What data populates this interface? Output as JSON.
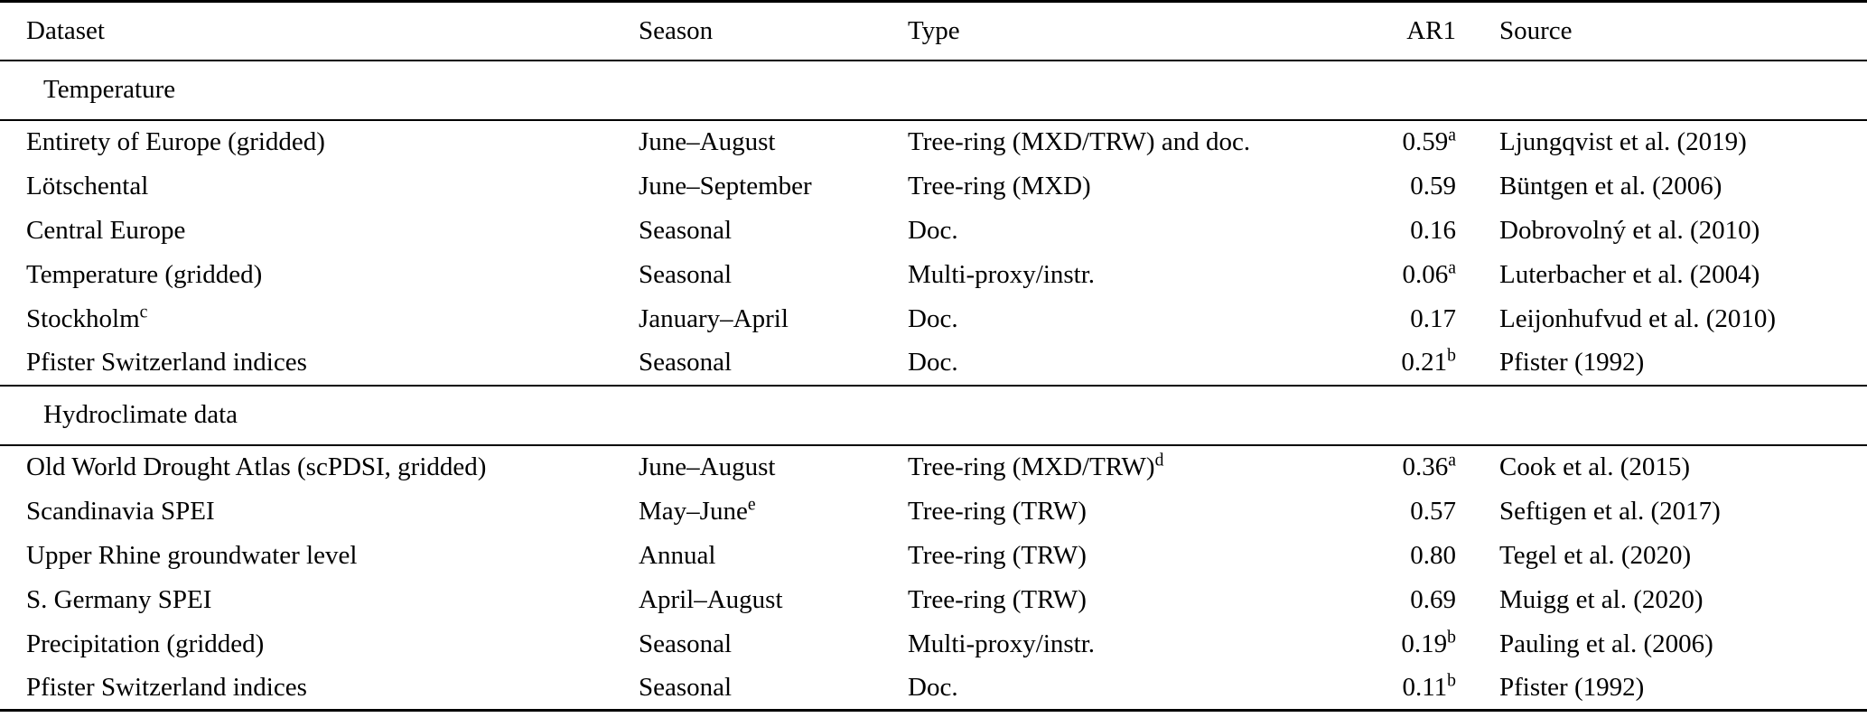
{
  "table": {
    "colors": {
      "text": "#000000",
      "rule": "#000000",
      "background": "#ffffff"
    },
    "columns": [
      "Dataset",
      "Season",
      "Type",
      "AR1",
      "Source"
    ],
    "sections": [
      {
        "header": "Temperature",
        "rows": [
          {
            "dataset": "Entirety of Europe (gridded)",
            "season": "June–August",
            "type": "Tree-ring (MXD/TRW) and doc.",
            "ar1": "0.59",
            "ar1_sup": "a",
            "source": "Ljungqvist et al. (2019)"
          },
          {
            "dataset": "Lötschental",
            "season": "June–September",
            "type": "Tree-ring (MXD)",
            "ar1": "0.59",
            "source": "Büntgen et al. (2006)"
          },
          {
            "dataset": "Central Europe",
            "season": "Seasonal",
            "type": "Doc.",
            "ar1": "0.16",
            "source": "Dobrovolný et al. (2010)"
          },
          {
            "dataset": "Temperature (gridded)",
            "season": "Seasonal",
            "type": "Multi-proxy/instr.",
            "ar1": "0.06",
            "ar1_sup": "a",
            "source": "Luterbacher et al. (2004)"
          },
          {
            "dataset": "Stockholm",
            "dataset_sup": "c",
            "season": "January–April",
            "type": "Doc.",
            "ar1": "0.17",
            "source": "Leijonhufvud et al. (2010)"
          },
          {
            "dataset": "Pfister Switzerland indices",
            "season": "Seasonal",
            "type": "Doc.",
            "ar1": "0.21",
            "ar1_sup": "b",
            "source": "Pfister (1992)"
          }
        ]
      },
      {
        "header": "Hydroclimate data",
        "rows": [
          {
            "dataset": "Old World Drought Atlas (scPDSI, gridded)",
            "season": "June–August",
            "type": "Tree-ring (MXD/TRW)",
            "type_sup": "d",
            "ar1": "0.36",
            "ar1_sup": "a",
            "source": "Cook et al. (2015)"
          },
          {
            "dataset": "Scandinavia SPEI",
            "season": "May–June",
            "season_sup": "e",
            "type": "Tree-ring (TRW)",
            "ar1": "0.57",
            "source": "Seftigen et al. (2017)"
          },
          {
            "dataset": "Upper Rhine groundwater level",
            "season": "Annual",
            "type": "Tree-ring (TRW)",
            "ar1": "0.80",
            "source": "Tegel et al. (2020)"
          },
          {
            "dataset": "S. Germany SPEI",
            "season": "April–August",
            "type": "Tree-ring (TRW)",
            "ar1": "0.69",
            "source": "Muigg et al. (2020)"
          },
          {
            "dataset": "Precipitation (gridded)",
            "season": "Seasonal",
            "type": "Multi-proxy/instr.",
            "ar1": "0.19",
            "ar1_sup": "b",
            "source": "Pauling et al. (2006)"
          },
          {
            "dataset": "Pfister Switzerland indices",
            "season": "Seasonal",
            "type": "Doc.",
            "ar1": "0.11",
            "ar1_sup": "b",
            "source": "Pfister (1992)"
          }
        ]
      }
    ]
  }
}
